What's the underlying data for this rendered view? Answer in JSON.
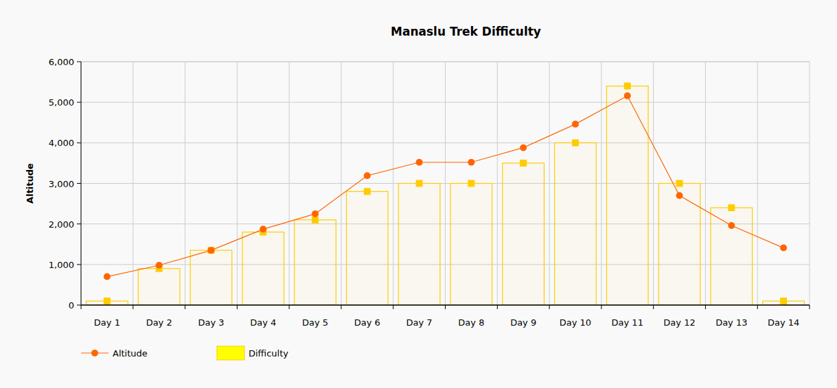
{
  "chart_data": {
    "type": "combo",
    "title": "Manaslu Trek Difficulty",
    "y_label": "Altitude",
    "categories": [
      "Day 1",
      "Day 2",
      "Day 3",
      "Day 4",
      "Day 5",
      "Day 6",
      "Day 7",
      "Day 8",
      "Day 9",
      "Day 10",
      "Day 11",
      "Day 12",
      "Day 13",
      "Day 14"
    ],
    "series": [
      {
        "name": "Altitude",
        "type": "line",
        "color": "#ff6600",
        "marker": "circle",
        "values": [
          700,
          980,
          1350,
          1870,
          2250,
          3190,
          3520,
          3520,
          3880,
          4460,
          5160,
          2700,
          1960,
          1410
        ]
      },
      {
        "name": "Difficulty",
        "type": "bar",
        "color": "#ffcc00",
        "marker": "square",
        "values": [
          100,
          900,
          1350,
          1800,
          2100,
          2800,
          3000,
          3000,
          3500,
          4000,
          5400,
          3000,
          2400,
          100
        ]
      }
    ],
    "ylim": [
      0,
      6000
    ],
    "yticks": [
      0,
      {
        "value": 1000,
        "label": "1,000"
      },
      {
        "value": 2000,
        "label": "2,000"
      },
      {
        "value": 3000,
        "label": "3,000"
      },
      {
        "value": 4000,
        "label": "4,000"
      },
      {
        "value": 5000,
        "label": "5,000"
      },
      {
        "value": 6000,
        "label": "6,000"
      }
    ],
    "grid": true,
    "legend": "bottom"
  }
}
